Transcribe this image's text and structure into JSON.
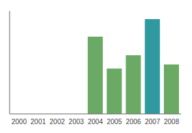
{
  "chart_data": {
    "type": "bar",
    "categories": [
      "2000",
      "2001",
      "2002",
      "2003",
      "2004",
      "2005",
      "2006",
      "2007",
      "2008"
    ],
    "values": [
      0,
      0,
      0,
      0,
      75,
      44,
      57,
      92,
      48
    ],
    "colors": [
      "#6aaa64",
      "#6aaa64",
      "#6aaa64",
      "#6aaa64",
      "#6aaa64",
      "#6aaa64",
      "#6aaa64",
      "#2e9aa0",
      "#6aaa64"
    ],
    "ylim": [
      0,
      100
    ],
    "yticks": [],
    "grid": false,
    "tick_labels": "x"
  }
}
